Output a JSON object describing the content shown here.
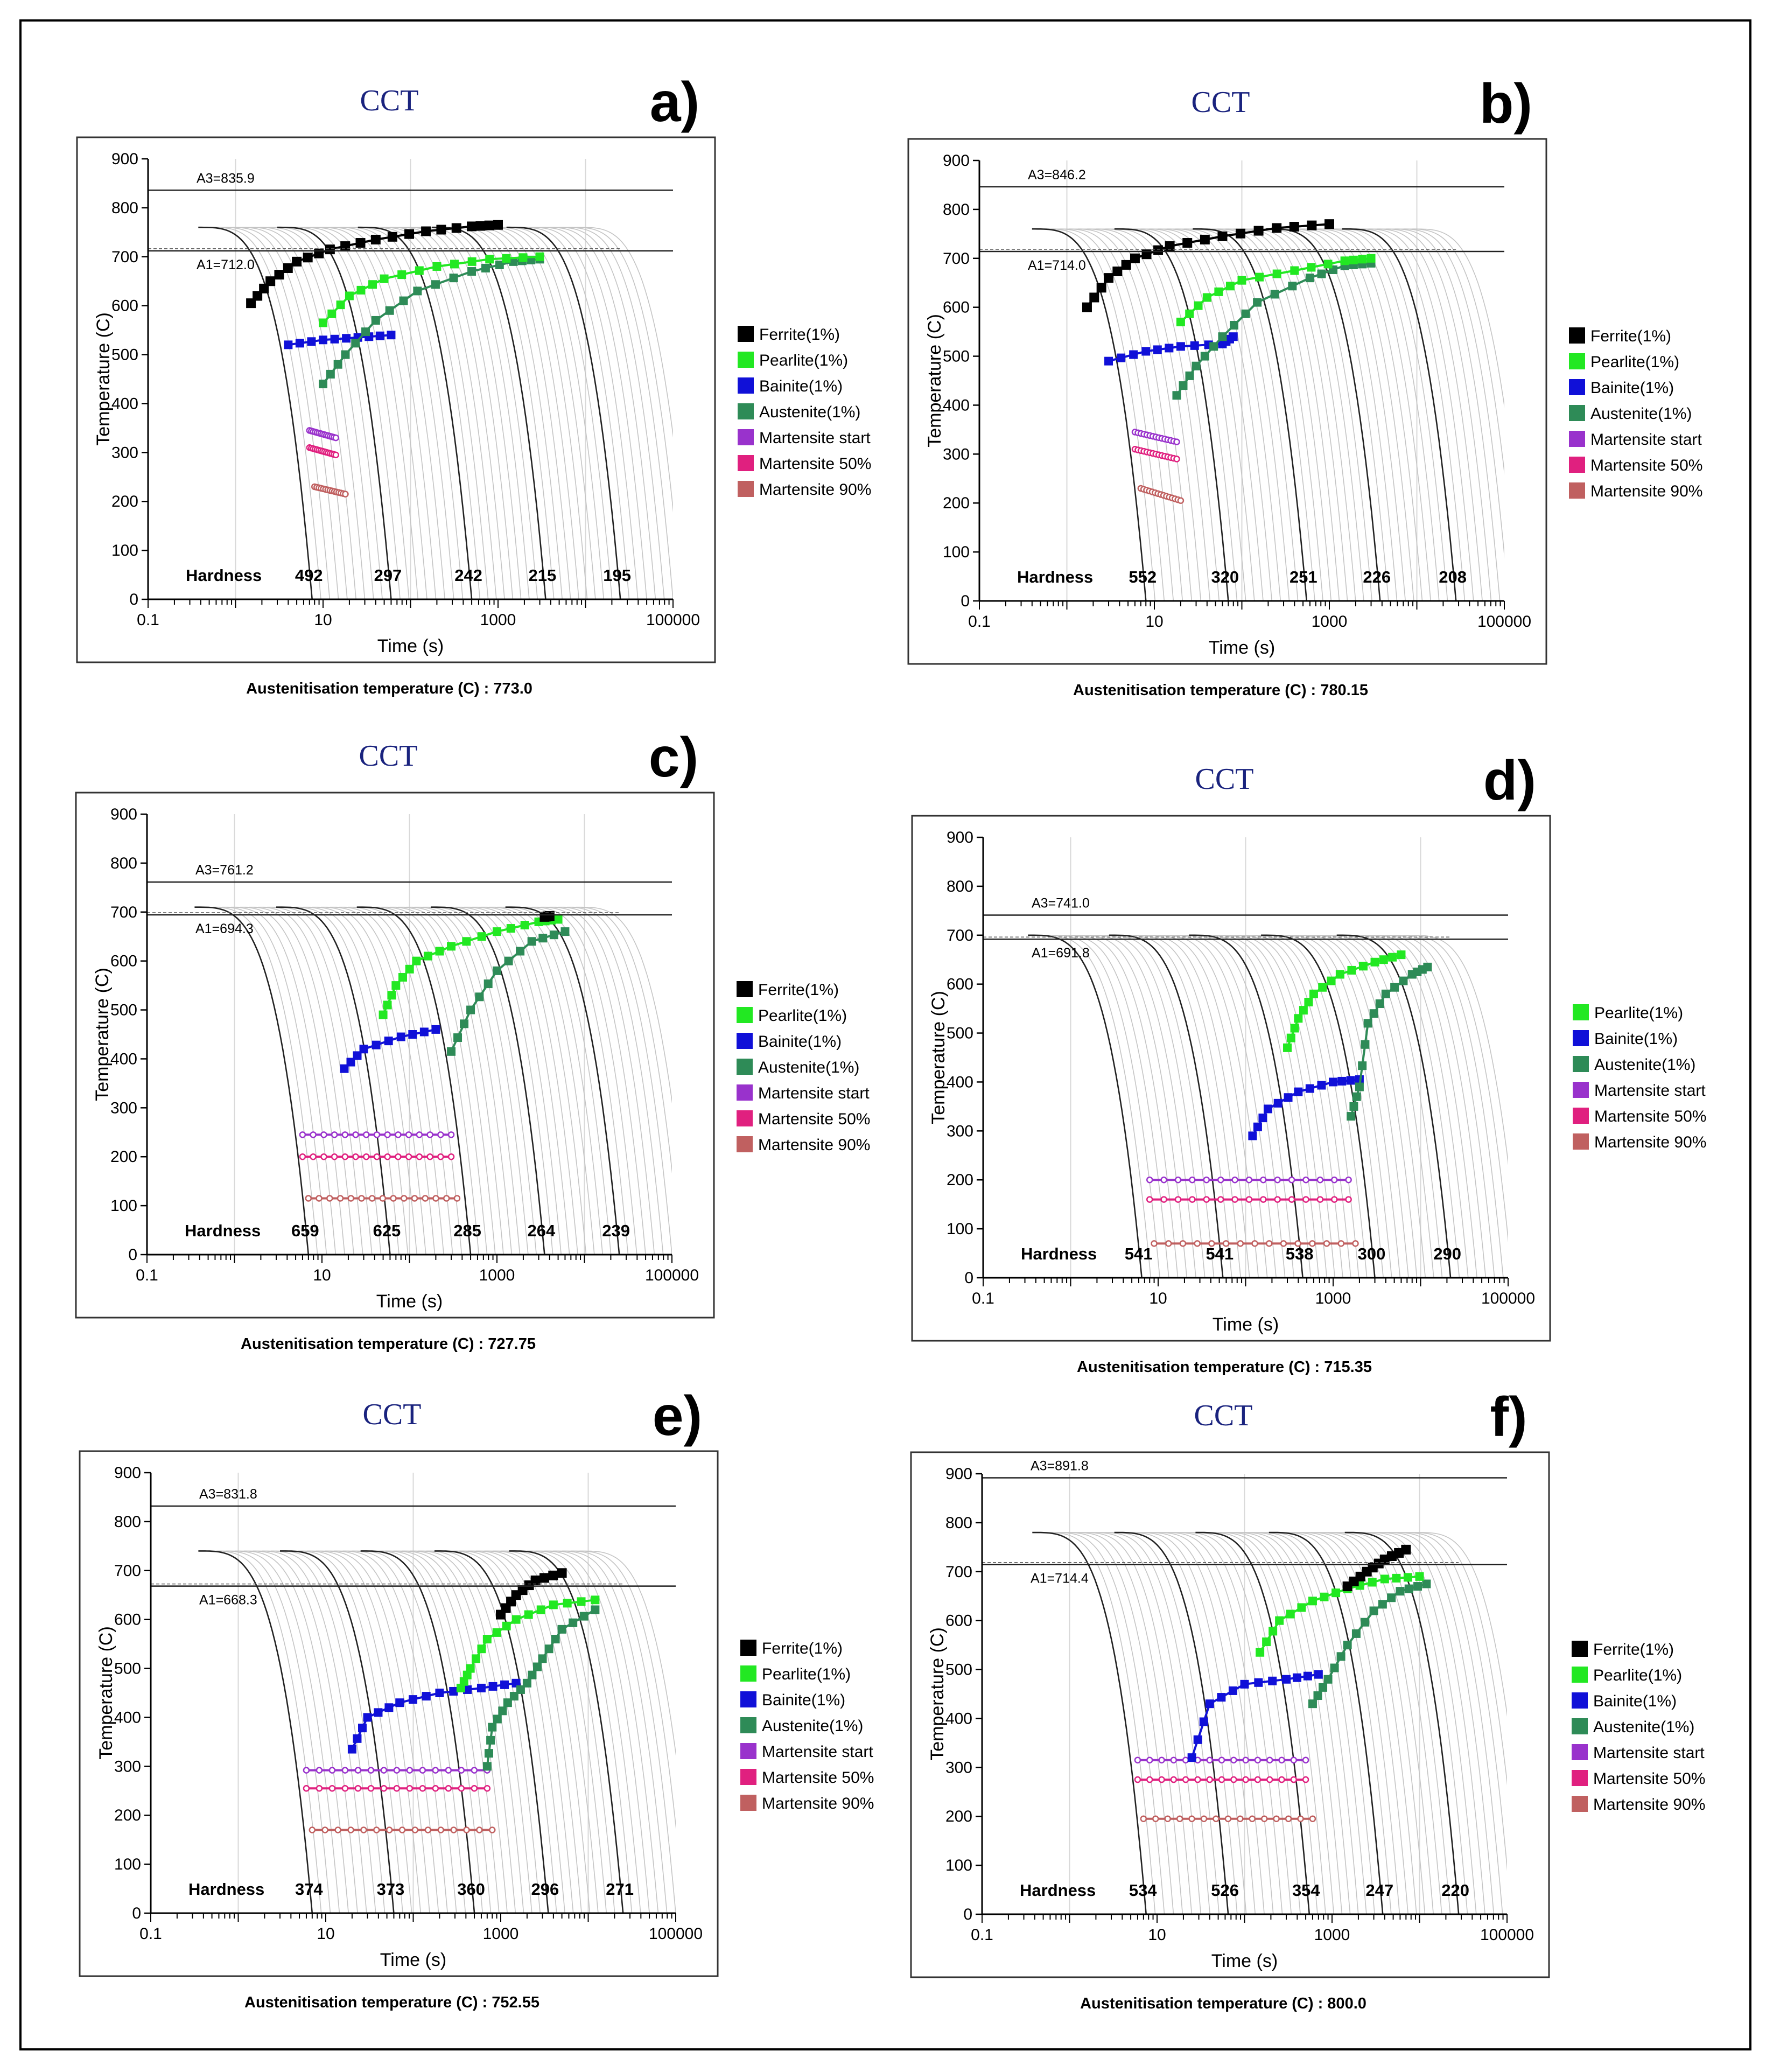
{
  "figure": {
    "legend_all": [
      {
        "key": "ferrite",
        "label": "Ferrite(1%)",
        "color": "#000000"
      },
      {
        "key": "pearlite",
        "label": "Pearlite(1%)",
        "color": "#22e822"
      },
      {
        "key": "bainite",
        "label": "Bainite(1%)",
        "color": "#1010d8"
      },
      {
        "key": "austenite",
        "label": "Austenite(1%)",
        "color": "#2e8b57"
      },
      {
        "key": "ms",
        "label": "Martensite start",
        "color": "#9932cc"
      },
      {
        "key": "m50",
        "label": "Martensite 50%",
        "color": "#e0207f"
      },
      {
        "key": "m90",
        "label": "Martensite 90%",
        "color": "#c06060"
      }
    ]
  },
  "chart_data": [
    {
      "type": "line",
      "panel": "a)",
      "title": "CCT",
      "xlabel": "Time (s)",
      "ylabel": "Temperature (C)",
      "xscale": "log",
      "xlim": [
        0.1,
        100000
      ],
      "ylim": [
        0,
        900
      ],
      "xticks": [
        "0.1",
        "10",
        "1000",
        "100000"
      ],
      "yticks": [
        "0",
        "100",
        "200",
        "300",
        "400",
        "500",
        "600",
        "700",
        "800",
        "900"
      ],
      "A3": 835.9,
      "A3_label": "A3=835.9",
      "A1": 712.0,
      "A1_label": "A1=712.0",
      "start_temp": 760,
      "hardness_label": "Hardness",
      "hardness": [
        "492",
        "297",
        "242",
        "215",
        "195"
      ],
      "main_curves_t": [
        7.5,
        60,
        500,
        3500,
        25000
      ],
      "austenitisation": "Austenitisation temperature (C) : 773.0",
      "legend": [
        "ferrite",
        "pearlite",
        "bainite",
        "austenite",
        "ms",
        "m50",
        "m90"
      ],
      "series": {
        "ferrite": [
          [
            1.5,
            605
          ],
          [
            2.5,
            650
          ],
          [
            5,
            690
          ],
          [
            12,
            715
          ],
          [
            40,
            735
          ],
          [
            150,
            752
          ],
          [
            500,
            762
          ],
          [
            1000,
            765
          ]
        ],
        "pearlite": [
          [
            10,
            565
          ],
          [
            20,
            620
          ],
          [
            50,
            655
          ],
          [
            200,
            680
          ],
          [
            800,
            695
          ],
          [
            3000,
            700
          ]
        ],
        "bainite": [
          [
            4,
            520
          ],
          [
            10,
            530
          ],
          [
            25,
            535
          ],
          [
            60,
            540
          ]
        ],
        "austenite": [
          [
            10,
            440
          ],
          [
            18,
            500
          ],
          [
            40,
            570
          ],
          [
            120,
            630
          ],
          [
            500,
            670
          ],
          [
            1500,
            690
          ],
          [
            3000,
            695
          ]
        ],
        "ms": [
          [
            7,
            345
          ],
          [
            14,
            330
          ]
        ],
        "m50": [
          [
            7,
            310
          ],
          [
            14,
            295
          ]
        ],
        "m90": [
          [
            8,
            230
          ],
          [
            18,
            215
          ]
        ]
      }
    },
    {
      "type": "line",
      "panel": "b)",
      "title": "CCT",
      "xlabel": "Time (s)",
      "ylabel": "Temperature (C)",
      "xscale": "log",
      "xlim": [
        0.1,
        100000
      ],
      "ylim": [
        0,
        900
      ],
      "xticks": [
        "0.1",
        "10",
        "1000",
        "100000"
      ],
      "yticks": [
        "0",
        "100",
        "200",
        "300",
        "400",
        "500",
        "600",
        "700",
        "800",
        "900"
      ],
      "A3": 846.2,
      "A3_label": "A3=846.2",
      "A1": 714.0,
      "A1_label": "A1=714.0",
      "start_temp": 760,
      "hardness_label": "Hardness",
      "hardness": [
        "552",
        "320",
        "251",
        "226",
        "208"
      ],
      "main_curves_t": [
        8,
        70,
        550,
        3800,
        28000
      ],
      "austenitisation": "Austenitisation temperature (C) : 780.15",
      "legend": [
        "ferrite",
        "pearlite",
        "bainite",
        "austenite",
        "ms",
        "m50",
        "m90"
      ],
      "series": {
        "ferrite": [
          [
            1.7,
            600
          ],
          [
            3,
            660
          ],
          [
            6,
            700
          ],
          [
            15,
            725
          ],
          [
            60,
            745
          ],
          [
            250,
            762
          ],
          [
            1000,
            770
          ]
        ],
        "pearlite": [
          [
            20,
            570
          ],
          [
            40,
            620
          ],
          [
            100,
            655
          ],
          [
            400,
            675
          ],
          [
            1500,
            695
          ],
          [
            3000,
            700
          ]
        ],
        "bainite": [
          [
            3,
            490
          ],
          [
            8,
            510
          ],
          [
            20,
            520
          ],
          [
            60,
            525
          ],
          [
            80,
            540
          ]
        ],
        "austenite": [
          [
            18,
            420
          ],
          [
            30,
            480
          ],
          [
            60,
            540
          ],
          [
            150,
            610
          ],
          [
            600,
            660
          ],
          [
            1500,
            685
          ],
          [
            3000,
            690
          ]
        ],
        "ms": [
          [
            6,
            345
          ],
          [
            18,
            325
          ]
        ],
        "m50": [
          [
            6,
            310
          ],
          [
            18,
            290
          ]
        ],
        "m90": [
          [
            7,
            230
          ],
          [
            20,
            205
          ]
        ]
      }
    },
    {
      "type": "line",
      "panel": "c)",
      "title": "CCT",
      "xlabel": "Time (s)",
      "ylabel": "Temperature (C)",
      "xscale": "log",
      "xlim": [
        0.1,
        100000
      ],
      "ylim": [
        0,
        900
      ],
      "xticks": [
        "0.1",
        "10",
        "1000",
        "100000"
      ],
      "yticks": [
        "0",
        "100",
        "200",
        "300",
        "400",
        "500",
        "600",
        "700",
        "800",
        "900"
      ],
      "A3": 761.2,
      "A3_label": "A3=761.2",
      "A1": 694.3,
      "A1_label": "A1=694.3",
      "start_temp": 710,
      "hardness_label": "Hardness",
      "hardness": [
        "659",
        "625",
        "285",
        "264",
        "239"
      ],
      "main_curves_t": [
        7,
        60,
        500,
        3500,
        25000
      ],
      "austenitisation": "Austenitisation temperature (C) : 727.75",
      "legend": [
        "ferrite",
        "pearlite",
        "bainite",
        "austenite",
        "ms",
        "m50",
        "m90"
      ],
      "series": {
        "ferrite": [
          [
            3500,
            690
          ],
          [
            4000,
            692
          ]
        ],
        "pearlite": [
          [
            50,
            490
          ],
          [
            70,
            550
          ],
          [
            120,
            600
          ],
          [
            300,
            630
          ],
          [
            1000,
            660
          ],
          [
            3000,
            680
          ],
          [
            5000,
            685
          ]
        ],
        "bainite": [
          [
            18,
            380
          ],
          [
            30,
            420
          ],
          [
            80,
            445
          ],
          [
            200,
            460
          ]
        ],
        "austenite": [
          [
            300,
            415
          ],
          [
            500,
            500
          ],
          [
            1000,
            580
          ],
          [
            2500,
            640
          ],
          [
            6000,
            660
          ]
        ],
        "ms": [
          [
            6,
            245
          ],
          [
            300,
            245
          ]
        ],
        "m50": [
          [
            6,
            200
          ],
          [
            300,
            200
          ]
        ],
        "m90": [
          [
            7,
            115
          ],
          [
            350,
            115
          ]
        ]
      }
    },
    {
      "type": "line",
      "panel": "d)",
      "title": "CCT",
      "xlabel": "Time (s)",
      "ylabel": "Temperature (C)",
      "xscale": "log",
      "xlim": [
        0.1,
        100000
      ],
      "ylim": [
        0,
        900
      ],
      "xticks": [
        "0.1",
        "10",
        "1000",
        "100000"
      ],
      "yticks": [
        "0",
        "100",
        "200",
        "300",
        "400",
        "500",
        "600",
        "700",
        "800",
        "900"
      ],
      "A3": 741.0,
      "A3_label": "A3=741.0",
      "A1": 691.8,
      "A1_label": "A1=691.8",
      "start_temp": 700,
      "hardness_label": "Hardness",
      "hardness": [
        "541",
        "541",
        "538",
        "300",
        "290"
      ],
      "main_curves_t": [
        6.5,
        55,
        450,
        3000,
        22000
      ],
      "austenitisation": "Austenitisation temperature (C) : 715.35",
      "legend": [
        "pearlite",
        "bainite",
        "austenite",
        "ms",
        "m50",
        "m90"
      ],
      "series": {
        "pearlite": [
          [
            300,
            470
          ],
          [
            400,
            530
          ],
          [
            600,
            580
          ],
          [
            1200,
            620
          ],
          [
            3000,
            645
          ],
          [
            6000,
            660
          ]
        ],
        "bainite": [
          [
            120,
            290
          ],
          [
            180,
            345
          ],
          [
            400,
            380
          ],
          [
            1000,
            400
          ],
          [
            2000,
            405
          ]
        ],
        "austenite": [
          [
            1600,
            330
          ],
          [
            2000,
            390
          ],
          [
            2500,
            520
          ],
          [
            4000,
            580
          ],
          [
            8000,
            620
          ],
          [
            12000,
            635
          ]
        ],
        "ms": [
          [
            8,
            200
          ],
          [
            1500,
            200
          ]
        ],
        "m50": [
          [
            8,
            160
          ],
          [
            1500,
            160
          ]
        ],
        "m90": [
          [
            9,
            70
          ],
          [
            1800,
            70
          ]
        ]
      }
    },
    {
      "type": "line",
      "panel": "e)",
      "title": "CCT",
      "xlabel": "Time (s)",
      "ylabel": "Temperature (C)",
      "xscale": "log",
      "xlim": [
        0.1,
        100000
      ],
      "ylim": [
        0,
        900
      ],
      "xticks": [
        "0.1",
        "10",
        "1000",
        "100000"
      ],
      "yticks": [
        "0",
        "100",
        "200",
        "300",
        "400",
        "500",
        "600",
        "700",
        "800",
        "900"
      ],
      "A3": 831.8,
      "A3_label": "A3=831.8",
      "A1": 668.3,
      "A1_label": "A1=668.3",
      "start_temp": 740,
      "hardness_label": "Hardness",
      "hardness": [
        "374",
        "373",
        "360",
        "296",
        "271"
      ],
      "main_curves_t": [
        7,
        60,
        500,
        3500,
        25000
      ],
      "austenitisation": "Austenitisation temperature (C) : 752.55",
      "legend": [
        "ferrite",
        "pearlite",
        "bainite",
        "austenite",
        "ms",
        "m50",
        "m90"
      ],
      "series": {
        "ferrite": [
          [
            1000,
            610
          ],
          [
            1500,
            650
          ],
          [
            2500,
            680
          ],
          [
            5000,
            695
          ]
        ],
        "pearlite": [
          [
            350,
            460
          ],
          [
            450,
            500
          ],
          [
            700,
            560
          ],
          [
            1500,
            600
          ],
          [
            4000,
            630
          ],
          [
            12000,
            640
          ]
        ],
        "bainite": [
          [
            20,
            335
          ],
          [
            30,
            400
          ],
          [
            70,
            430
          ],
          [
            200,
            450
          ],
          [
            600,
            460
          ],
          [
            1500,
            470
          ]
        ],
        "austenite": [
          [
            700,
            300
          ],
          [
            800,
            380
          ],
          [
            1200,
            430
          ],
          [
            2000,
            470
          ],
          [
            3000,
            520
          ],
          [
            5000,
            580
          ],
          [
            12000,
            620
          ]
        ],
        "ms": [
          [
            6,
            292
          ],
          [
            700,
            292
          ]
        ],
        "m50": [
          [
            6,
            255
          ],
          [
            700,
            255
          ]
        ],
        "m90": [
          [
            7,
            170
          ],
          [
            800,
            170
          ]
        ]
      }
    },
    {
      "type": "line",
      "panel": "f)",
      "title": "CCT",
      "xlabel": "Time (s)",
      "ylabel": "Temperature (C)",
      "xscale": "log",
      "xlim": [
        0.1,
        100000
      ],
      "ylim": [
        0,
        900
      ],
      "xticks": [
        "0.1",
        "10",
        "1000",
        "100000"
      ],
      "yticks": [
        "0",
        "100",
        "200",
        "300",
        "400",
        "500",
        "600",
        "700",
        "800",
        "900"
      ],
      "A3": 891.8,
      "A3_label": "A3=891.8",
      "A1": 714.4,
      "A1_label": "A1=714.4",
      "start_temp": 780,
      "hardness_label": "Hardness",
      "hardness": [
        "534",
        "526",
        "354",
        "247",
        "220"
      ],
      "main_curves_t": [
        7.5,
        65,
        550,
        3800,
        28000
      ],
      "austenitisation": "Austenitisation temperature (C) : 800.0",
      "legend": [
        "ferrite",
        "pearlite",
        "bainite",
        "austenite",
        "ms",
        "m50",
        "m90"
      ],
      "series": {
        "ferrite": [
          [
            1500,
            670
          ],
          [
            2500,
            700
          ],
          [
            4000,
            725
          ],
          [
            7000,
            745
          ]
        ],
        "pearlite": [
          [
            150,
            535
          ],
          [
            250,
            600
          ],
          [
            600,
            640
          ],
          [
            1500,
            665
          ],
          [
            4000,
            685
          ],
          [
            10000,
            690
          ]
        ],
        "bainite": [
          [
            25,
            320
          ],
          [
            40,
            430
          ],
          [
            100,
            470
          ],
          [
            300,
            480
          ],
          [
            700,
            490
          ]
        ],
        "austenite": [
          [
            600,
            430
          ],
          [
            900,
            480
          ],
          [
            1500,
            550
          ],
          [
            3000,
            620
          ],
          [
            6000,
            660
          ],
          [
            12000,
            675
          ]
        ],
        "ms": [
          [
            6,
            315
          ],
          [
            500,
            315
          ]
        ],
        "m50": [
          [
            6,
            275
          ],
          [
            500,
            275
          ]
        ],
        "m90": [
          [
            7,
            195
          ],
          [
            600,
            195
          ]
        ]
      }
    }
  ]
}
